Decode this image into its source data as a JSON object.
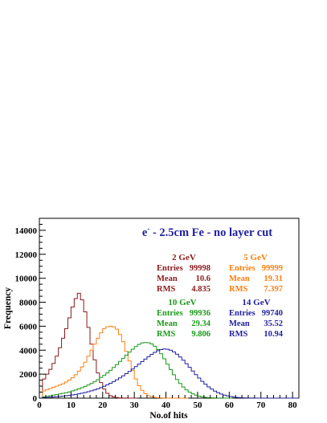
{
  "chart_data": {
    "type": "line",
    "style": "step-histogram",
    "title": "e- - 2.5cm Fe - no layer cut",
    "title_parts": {
      "base": "e",
      "sup": "-",
      "rest": " - 2.5cm Fe - no layer cut"
    },
    "xlabel": "No.of hits",
    "ylabel": "Frequency",
    "xlim": [
      0,
      82
    ],
    "ylim": [
      0,
      15000
    ],
    "x_ticks": [
      0,
      10,
      20,
      30,
      40,
      50,
      60,
      70,
      80
    ],
    "y_ticks": [
      0,
      2000,
      4000,
      6000,
      8000,
      10000,
      12000,
      14000
    ],
    "bin_width": 1,
    "series": [
      {
        "name": "2 GeV",
        "color": "#8b1a1a",
        "stats": {
          "entries": "99998",
          "mean": "10.6",
          "rms": "4.835"
        },
        "x": [
          0,
          1,
          2,
          3,
          4,
          5,
          6,
          7,
          8,
          9,
          10,
          11,
          12,
          13,
          14,
          15,
          16,
          17,
          18,
          19,
          20,
          21,
          22,
          23,
          24,
          25,
          26,
          27,
          28,
          29,
          30
        ],
        "values": [
          0,
          1600,
          2000,
          2400,
          2900,
          3500,
          4200,
          5000,
          5800,
          6700,
          7600,
          8300,
          8750,
          8200,
          7200,
          5900,
          4500,
          3200,
          2100,
          1300,
          750,
          400,
          200,
          100,
          50,
          20,
          10,
          5,
          2,
          0,
          0
        ]
      },
      {
        "name": "5 GeV",
        "color": "#ff7f0e",
        "stats": {
          "entries": "99999",
          "mean": "19.31",
          "rms": "7.397"
        },
        "x": [
          0,
          1,
          2,
          3,
          4,
          5,
          6,
          7,
          8,
          9,
          10,
          11,
          12,
          13,
          14,
          15,
          16,
          17,
          18,
          19,
          20,
          21,
          22,
          23,
          24,
          25,
          26,
          27,
          28,
          29,
          30,
          31,
          32,
          33,
          34,
          35,
          36,
          37,
          38,
          39,
          40,
          41,
          42,
          43,
          44,
          45,
          46
        ],
        "values": [
          0,
          600,
          700,
          800,
          900,
          1000,
          1100,
          1200,
          1350,
          1500,
          1700,
          1950,
          2250,
          2600,
          3000,
          3500,
          4000,
          4500,
          5000,
          5450,
          5800,
          5950,
          6000,
          5950,
          5750,
          5300,
          4700,
          3900,
          3100,
          2300,
          1600,
          1050,
          650,
          380,
          210,
          110,
          60,
          30,
          15,
          8,
          4,
          2,
          1,
          0,
          0,
          0,
          0
        ]
      },
      {
        "name": "10 GeV",
        "color": "#1a9a1a",
        "stats": {
          "entries": "99936",
          "mean": "29.34",
          "rms": "9.806"
        },
        "x": [
          0,
          1,
          2,
          3,
          4,
          5,
          6,
          7,
          8,
          9,
          10,
          11,
          12,
          13,
          14,
          15,
          16,
          17,
          18,
          19,
          20,
          21,
          22,
          23,
          24,
          25,
          26,
          27,
          28,
          29,
          30,
          31,
          32,
          33,
          34,
          35,
          36,
          37,
          38,
          39,
          40,
          41,
          42,
          43,
          44,
          45,
          46,
          47,
          48,
          49,
          50,
          51,
          52,
          53,
          54,
          55,
          56,
          57,
          58,
          59,
          60
        ],
        "values": [
          0,
          100,
          150,
          200,
          250,
          300,
          350,
          400,
          450,
          520,
          600,
          680,
          770,
          870,
          980,
          1100,
          1230,
          1380,
          1540,
          1720,
          1900,
          2100,
          2320,
          2560,
          2800,
          3060,
          3320,
          3580,
          3830,
          4080,
          4300,
          4480,
          4600,
          4640,
          4620,
          4520,
          4330,
          4050,
          3700,
          3280,
          2830,
          2380,
          1950,
          1560,
          1220,
          930,
          690,
          500,
          360,
          250,
          170,
          110,
          70,
          45,
          28,
          17,
          10,
          6,
          3,
          1,
          0
        ]
      },
      {
        "name": "14 GeV",
        "color": "#1f1f9f",
        "stats": {
          "entries": "99740",
          "mean": "35.52",
          "rms": "10.94"
        },
        "x": [
          0,
          1,
          2,
          3,
          4,
          5,
          6,
          7,
          8,
          9,
          10,
          11,
          12,
          13,
          14,
          15,
          16,
          17,
          18,
          19,
          20,
          21,
          22,
          23,
          24,
          25,
          26,
          27,
          28,
          29,
          30,
          31,
          32,
          33,
          34,
          35,
          36,
          37,
          38,
          39,
          40,
          41,
          42,
          43,
          44,
          45,
          46,
          47,
          48,
          49,
          50,
          51,
          52,
          53,
          54,
          55,
          56,
          57,
          58,
          59,
          60,
          61,
          62,
          63,
          64,
          65,
          66,
          67,
          68,
          69,
          70,
          71,
          72,
          73,
          74,
          75,
          76,
          77,
          78,
          79,
          80,
          81
        ],
        "values": [
          0,
          50,
          60,
          80,
          100,
          120,
          140,
          170,
          200,
          230,
          270,
          310,
          360,
          410,
          470,
          540,
          610,
          690,
          780,
          880,
          990,
          1110,
          1240,
          1380,
          1530,
          1690,
          1860,
          2040,
          2230,
          2430,
          2630,
          2840,
          3050,
          3260,
          3460,
          3650,
          3820,
          3960,
          4050,
          4100,
          4080,
          4000,
          3860,
          3670,
          3430,
          3160,
          2870,
          2570,
          2260,
          1960,
          1670,
          1400,
          1160,
          940,
          750,
          590,
          450,
          340,
          250,
          180,
          130,
          90,
          60,
          40,
          25,
          15,
          10,
          6,
          4,
          2,
          1,
          0,
          0,
          0,
          0,
          0,
          0,
          0,
          0,
          0,
          0,
          0
        ]
      }
    ]
  }
}
